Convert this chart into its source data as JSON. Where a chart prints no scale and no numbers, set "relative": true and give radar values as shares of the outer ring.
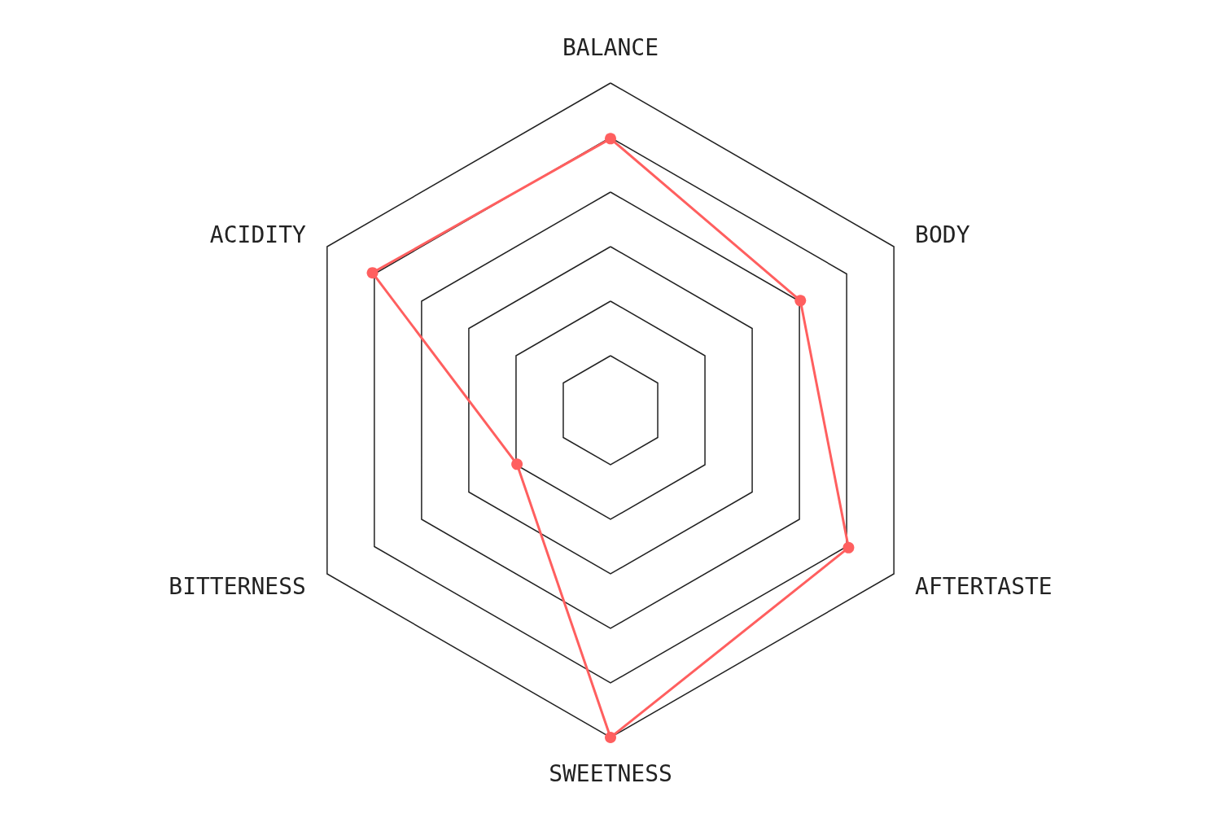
{
  "chart_data": {
    "type": "radar",
    "relative": true,
    "categories": [
      "BALANCE",
      "BODY",
      "AFTERTASTE",
      "SWEETNESS",
      "BITTERNESS",
      "ACIDITY"
    ],
    "marker": "circle",
    "line_style": "solid",
    "series": [
      {
        "color": "#ff5f5f",
        "values": [
          0.83,
          0.67,
          0.84,
          1.0,
          0.33,
          0.84
        ]
      }
    ]
  }
}
